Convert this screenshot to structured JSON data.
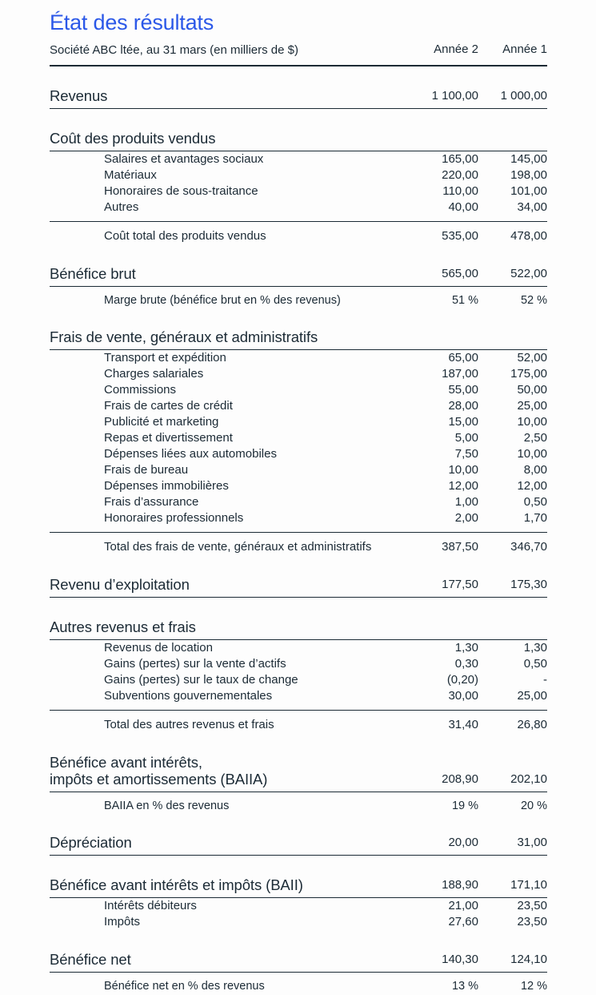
{
  "header": {
    "title": "État des résultats",
    "subtitle": "Société ABC ltée, au 31 mars (en milliers de $)",
    "col_year2": "Année 2",
    "col_year1": "Année 1"
  },
  "colors": {
    "accent_blue": "#2b58e8",
    "text": "#1b2a35",
    "rule_line": "#1b2a35",
    "background": "#fdfdfd"
  },
  "rows": [
    {
      "kind": "main",
      "label": "Revenus",
      "year2": "1 100,00",
      "year1": "1 000,00"
    },
    {
      "kind": "heading",
      "label": "Coût des produits vendus",
      "year2": "",
      "year1": ""
    },
    {
      "kind": "item",
      "label": "Salaires et avantages sociaux",
      "year2": "165,00",
      "year1": "145,00"
    },
    {
      "kind": "item",
      "label": "Matériaux",
      "year2": "220,00",
      "year1": "198,00"
    },
    {
      "kind": "item",
      "label": "Honoraires de sous-traitance",
      "year2": "110,00",
      "year1": "101,00"
    },
    {
      "kind": "item",
      "label": "Autres",
      "year2": "40,00",
      "year1": "34,00"
    },
    {
      "kind": "total",
      "label": "Coût total des produits vendus",
      "year2": "535,00",
      "year1": "478,00"
    },
    {
      "kind": "main",
      "label": "Bénéfice brut",
      "year2": "565,00",
      "year1": "522,00"
    },
    {
      "kind": "sub",
      "label": "Marge brute (bénéfice brut en % des revenus)",
      "year2": "51 %",
      "year1": "52 %"
    },
    {
      "kind": "heading",
      "label": "Frais de vente, généraux et administratifs",
      "year2": "",
      "year1": ""
    },
    {
      "kind": "item",
      "label": "Transport et expédition",
      "year2": "65,00",
      "year1": "52,00"
    },
    {
      "kind": "item",
      "label": "Charges salariales",
      "year2": "187,00",
      "year1": "175,00"
    },
    {
      "kind": "item",
      "label": "Commissions",
      "year2": "55,00",
      "year1": "50,00"
    },
    {
      "kind": "item",
      "label": "Frais de cartes de crédit",
      "year2": "28,00",
      "year1": "25,00"
    },
    {
      "kind": "item",
      "label": "Publicité et marketing",
      "year2": "15,00",
      "year1": "10,00"
    },
    {
      "kind": "item",
      "label": "Repas et divertissement",
      "year2": "5,00",
      "year1": "2,50"
    },
    {
      "kind": "item",
      "label": "Dépenses liées aux automobiles",
      "year2": "7,50",
      "year1": "10,00"
    },
    {
      "kind": "item",
      "label": "Frais de bureau",
      "year2": "10,00",
      "year1": "8,00"
    },
    {
      "kind": "item",
      "label": "Dépenses immobilières",
      "year2": "12,00",
      "year1": "12,00"
    },
    {
      "kind": "item",
      "label": "Frais d’assurance",
      "year2": "1,00",
      "year1": "0,50"
    },
    {
      "kind": "item",
      "label": "Honoraires professionnels",
      "year2": "2,00",
      "year1": "1,70"
    },
    {
      "kind": "total",
      "label": "Total des frais de vente, généraux et administratifs",
      "year2": "387,50",
      "year1": "346,70"
    },
    {
      "kind": "main",
      "label": "Revenu d’exploitation",
      "year2": "177,50",
      "year1": "175,30"
    },
    {
      "kind": "heading",
      "label": "Autres revenus et frais",
      "year2": "",
      "year1": ""
    },
    {
      "kind": "item",
      "label": "Revenus de location",
      "year2": "1,30",
      "year1": "1,30"
    },
    {
      "kind": "item",
      "label": "Gains (pertes) sur la vente d’actifs",
      "year2": "0,30",
      "year1": "0,50"
    },
    {
      "kind": "item",
      "label": "Gains (pertes) sur le taux de change",
      "year2": "(0,20)",
      "year1": "-"
    },
    {
      "kind": "item",
      "label": "Subventions gouvernementales",
      "year2": "30,00",
      "year1": "25,00"
    },
    {
      "kind": "total",
      "label": "Total des autres revenus et frais",
      "year2": "31,40",
      "year1": "26,80"
    },
    {
      "kind": "main",
      "label": "Bénéfice avant intérêts,\nimpôts et amortissements (BAIIA)",
      "year2": "208,90",
      "year1": "202,10"
    },
    {
      "kind": "sub",
      "label": "BAIIA en % des revenus",
      "year2": "19 %",
      "year1": "20 %"
    },
    {
      "kind": "main",
      "label": "Dépréciation",
      "year2": "20,00",
      "year1": "31,00"
    },
    {
      "kind": "main",
      "label": "Bénéfice avant intérêts et impôts (BAII)",
      "year2": "188,90",
      "year1": "171,10"
    },
    {
      "kind": "item",
      "label": "Intérêts débiteurs",
      "year2": "21,00",
      "year1": "23,50"
    },
    {
      "kind": "item",
      "label": "Impôts",
      "year2": "27,60",
      "year1": "23,50"
    },
    {
      "kind": "main",
      "label": "Bénéfice net",
      "year2": "140,30",
      "year1": "124,10"
    },
    {
      "kind": "sub",
      "label": "Bénéfice net en % des revenus",
      "year2": "13 %",
      "year1": "12 %"
    }
  ]
}
